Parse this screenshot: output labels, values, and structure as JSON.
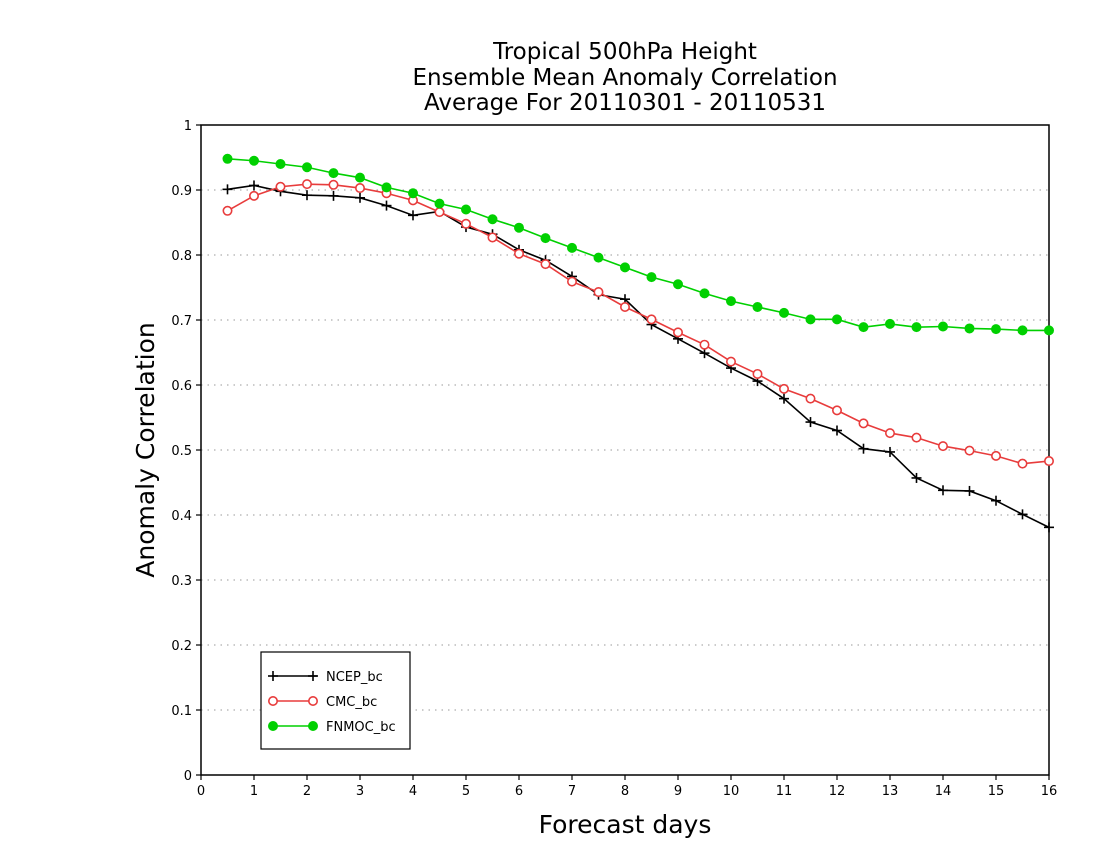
{
  "chart_data": {
    "type": "line",
    "title_lines": [
      "Tropical 500hPa Height",
      "Ensemble Mean Anomaly Correlation",
      "Average For 20110301 - 20110531"
    ],
    "xlabel": "Forecast days",
    "ylabel": "Anomaly Correlation",
    "xlim": [
      0,
      16
    ],
    "ylim": [
      0,
      1
    ],
    "xticks": [
      "0",
      "1",
      "2",
      "3",
      "4",
      "5",
      "6",
      "7",
      "8",
      "9",
      "10",
      "11",
      "12",
      "13",
      "14",
      "15",
      "16"
    ],
    "yticks": [
      "0",
      "0.1",
      "0.2",
      "0.3",
      "0.4",
      "0.5",
      "0.6",
      "0.7",
      "0.8",
      "0.9",
      "1"
    ],
    "grid": true,
    "legend_position": "lower-left",
    "x": [
      0.5,
      1,
      1.5,
      2,
      2.5,
      3,
      3.5,
      4,
      4.5,
      5,
      5.5,
      6,
      6.5,
      7,
      7.5,
      8,
      8.5,
      9,
      9.5,
      10,
      10.5,
      11,
      11.5,
      12,
      12.5,
      13,
      13.5,
      14,
      14.5,
      15,
      15.5,
      16
    ],
    "series": [
      {
        "name": "NCEP_bc",
        "marker": "plus",
        "color": "#000000",
        "values": [
          0.901,
          0.907,
          0.898,
          0.892,
          0.891,
          0.888,
          0.876,
          0.861,
          0.867,
          0.843,
          0.832,
          0.808,
          0.792,
          0.767,
          0.739,
          0.732,
          0.693,
          0.671,
          0.649,
          0.626,
          0.606,
          0.579,
          0.543,
          0.53,
          0.502,
          0.497,
          0.457,
          0.438,
          0.437,
          0.422,
          0.401,
          0.381
        ]
      },
      {
        "name": "CMC_bc",
        "marker": "open-circle",
        "color": "#e83c3c",
        "values": [
          0.868,
          0.891,
          0.905,
          0.909,
          0.908,
          0.903,
          0.895,
          0.884,
          0.866,
          0.848,
          0.827,
          0.802,
          0.786,
          0.759,
          0.743,
          0.72,
          0.701,
          0.681,
          0.662,
          0.636,
          0.617,
          0.594,
          0.579,
          0.561,
          0.541,
          0.526,
          0.519,
          0.506,
          0.499,
          0.491,
          0.479,
          0.483
        ]
      },
      {
        "name": "FNMOC_bc",
        "marker": "filled-circle",
        "color": "#00d000",
        "values": [
          0.948,
          0.945,
          0.94,
          0.935,
          0.926,
          0.919,
          0.904,
          0.895,
          0.879,
          0.87,
          0.855,
          0.842,
          0.826,
          0.811,
          0.796,
          0.781,
          0.766,
          0.755,
          0.741,
          0.729,
          0.72,
          0.711,
          0.701,
          0.701,
          0.689,
          0.694,
          0.689,
          0.69,
          0.687,
          0.686,
          0.684,
          0.684
        ]
      }
    ]
  }
}
